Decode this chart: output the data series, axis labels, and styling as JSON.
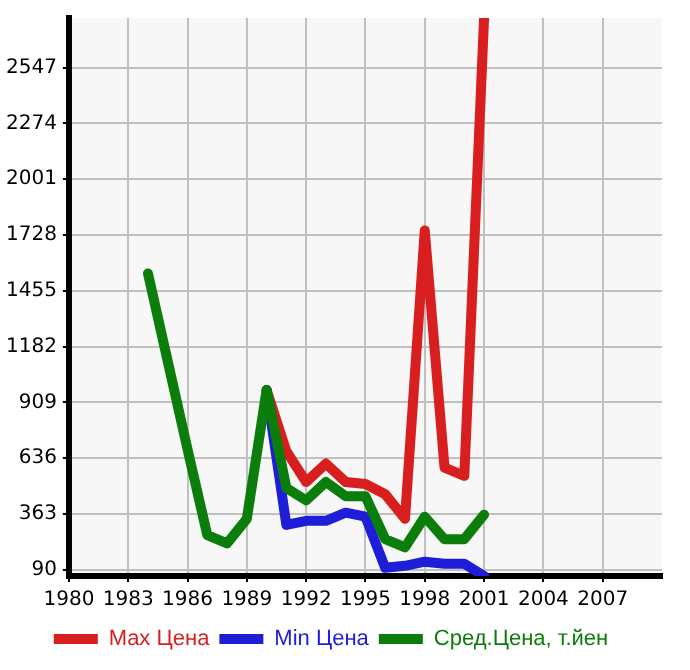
{
  "chart_data": {
    "type": "line",
    "x": [
      1984,
      1985,
      1986,
      1987,
      1988,
      1989,
      1990,
      1991,
      1992,
      1993,
      1994,
      1995,
      1996,
      1997,
      1998,
      1999,
      2000,
      2001
    ],
    "series": [
      {
        "name": "Max Цена",
        "color": "#d81e1e",
        "values": [
          null,
          null,
          null,
          null,
          null,
          null,
          970,
          670,
          520,
          610,
          520,
          510,
          460,
          340,
          1750,
          590,
          550,
          2790
        ]
      },
      {
        "name": "Min Цена",
        "color": "#1e1ed8",
        "values": [
          null,
          null,
          null,
          null,
          null,
          null,
          970,
          310,
          330,
          330,
          370,
          350,
          100,
          110,
          130,
          120,
          120,
          60
        ]
      },
      {
        "name": "Сред.Цена, т.йен",
        "color": "#0a7d0a",
        "values": [
          1540,
          1110,
          680,
          260,
          220,
          340,
          970,
          490,
          430,
          520,
          450,
          450,
          240,
          200,
          350,
          240,
          240,
          360
        ]
      }
    ],
    "xlim": [
      1980,
      2010
    ],
    "xticks": [
      1980,
      1983,
      1986,
      1989,
      1992,
      1995,
      1998,
      2001,
      2004,
      2007
    ],
    "ylim": [
      60,
      2790
    ],
    "yticks": [
      90,
      363,
      636,
      909,
      1182,
      1455,
      1728,
      2001,
      2274,
      2547
    ],
    "grid": true,
    "legend": "bottom",
    "marker": "none",
    "line_style": "solid"
  }
}
